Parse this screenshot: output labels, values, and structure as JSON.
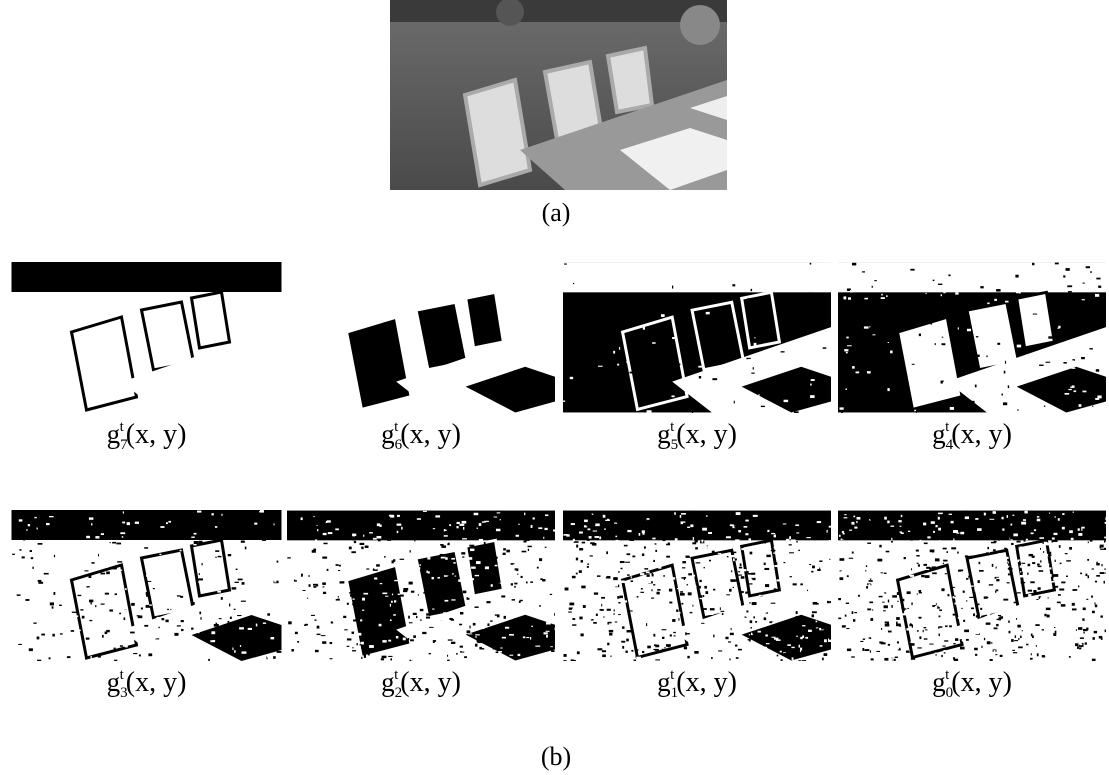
{
  "figure": {
    "top_caption": "(a)",
    "bottom_caption": "(b)",
    "panels": [
      {
        "base": "g",
        "sub": "7",
        "sup": "t",
        "args": "(x, y)"
      },
      {
        "base": "g",
        "sub": "6",
        "sup": "t",
        "args": "(x, y)"
      },
      {
        "base": "g",
        "sub": "5",
        "sup": "t",
        "args": "(x, y)"
      },
      {
        "base": "g",
        "sub": "4",
        "sup": "t",
        "args": "(x, y)"
      },
      {
        "base": "g",
        "sub": "3",
        "sup": "t",
        "args": "(x, y)"
      },
      {
        "base": "g",
        "sub": "2",
        "sup": "t",
        "args": "(x, y)"
      },
      {
        "base": "g",
        "sub": "1",
        "sup": "t",
        "args": "(x, y)"
      },
      {
        "base": "g",
        "sub": "0",
        "sup": "t",
        "args": "(x, y)"
      }
    ]
  }
}
